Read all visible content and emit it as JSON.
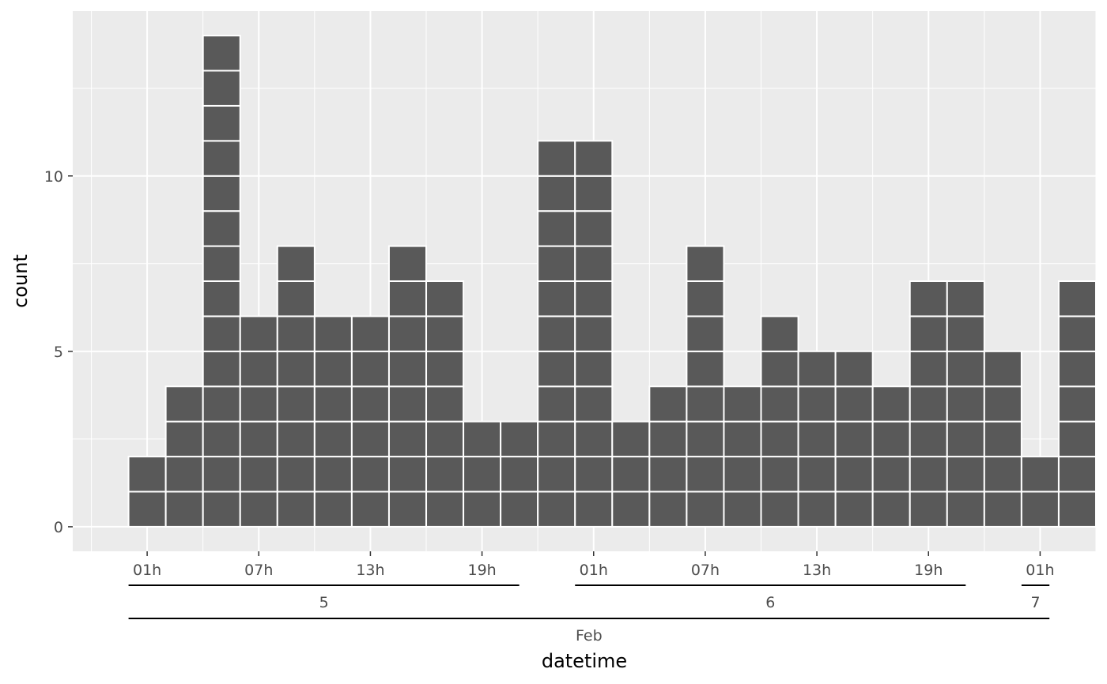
{
  "colors": {
    "panel_bg": "#ebebeb",
    "grid": "#ffffff",
    "bar_fill": "#595959",
    "bar_stroke": "#ffffff",
    "tick_text": "#4d4d4d",
    "axis_title": "#000000",
    "bracket": "#000000"
  },
  "chart_data": {
    "type": "bar",
    "style": "stacked unit squares (one box per count)",
    "xlabel": "datetime",
    "ylabel": "count",
    "x_unit": "hour",
    "x_start": "2024-02-05 00:00",
    "x": [
      "2024-02-05 00:00",
      "2024-02-05 02:00",
      "2024-02-05 04:00",
      "2024-02-05 06:00",
      "2024-02-05 08:00",
      "2024-02-05 10:00",
      "2024-02-05 12:00",
      "2024-02-05 14:00",
      "2024-02-05 16:00",
      "2024-02-05 18:00",
      "2024-02-05 20:00",
      "2024-02-05 22:00",
      "2024-02-06 00:00",
      "2024-02-06 02:00",
      "2024-02-06 04:00",
      "2024-02-06 06:00",
      "2024-02-06 08:00",
      "2024-02-06 10:00",
      "2024-02-06 12:00",
      "2024-02-06 14:00",
      "2024-02-06 16:00",
      "2024-02-06 18:00",
      "2024-02-06 20:00",
      "2024-02-06 22:00",
      "2024-02-07 00:00",
      "2024-02-07 02:00"
    ],
    "values": [
      2,
      4,
      14,
      6,
      8,
      6,
      6,
      8,
      7,
      3,
      3,
      11,
      11,
      3,
      4,
      8,
      4,
      6,
      5,
      5,
      4,
      7,
      7,
      5,
      2,
      7
    ],
    "xlim": [
      "2024-02-04 21:00",
      "2024-02-07 04:00"
    ],
    "ylim": [
      -0.7,
      14.7
    ],
    "y_ticks": [
      0,
      5,
      10
    ],
    "y_tick_labels": [
      "0",
      "5",
      "10"
    ],
    "x_ticks": [
      "2024-02-05 01:00",
      "2024-02-05 07:00",
      "2024-02-05 13:00",
      "2024-02-05 19:00",
      "2024-02-06 01:00",
      "2024-02-06 07:00",
      "2024-02-06 13:00",
      "2024-02-06 19:00",
      "2024-02-07 01:00"
    ],
    "x_tick_labels": [
      "01h",
      "07h",
      "13h",
      "19h",
      "01h",
      "07h",
      "13h",
      "19h",
      "01h"
    ],
    "day_groups": [
      {
        "label": "5",
        "start": "2024-02-05 00:00",
        "end": "2024-02-05 21:00"
      },
      {
        "label": "6",
        "start": "2024-02-06 00:00",
        "end": "2024-02-06 21:00"
      },
      {
        "label": "7",
        "start": "2024-02-07 00:00",
        "end": "2024-02-07 01:30"
      }
    ],
    "month_groups": [
      {
        "label": "Feb",
        "start": "2024-02-05 00:00",
        "end": "2024-02-07 01:30"
      }
    ],
    "grid": true,
    "legend": "none"
  }
}
